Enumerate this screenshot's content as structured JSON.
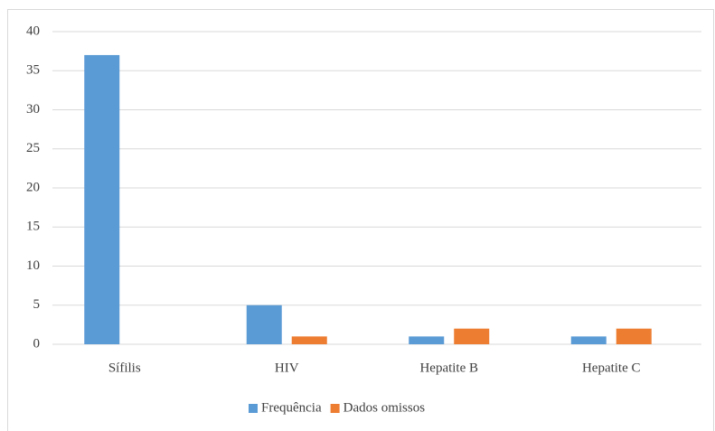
{
  "chart_data": {
    "type": "bar",
    "categories": [
      "Sífilis",
      "HIV",
      "Hepatite B",
      "Hepatite C"
    ],
    "series": [
      {
        "name": "Frequência",
        "color": "#5b9bd5",
        "values": [
          37,
          5,
          1,
          1
        ]
      },
      {
        "name": "Dados omissos",
        "color": "#ed7d31",
        "values": [
          0,
          1,
          2,
          2
        ]
      }
    ],
    "ylim": [
      0,
      40
    ],
    "yticks": [
      0,
      5,
      10,
      15,
      20,
      25,
      30,
      35,
      40
    ],
    "grid": true,
    "legend": "bottom"
  }
}
